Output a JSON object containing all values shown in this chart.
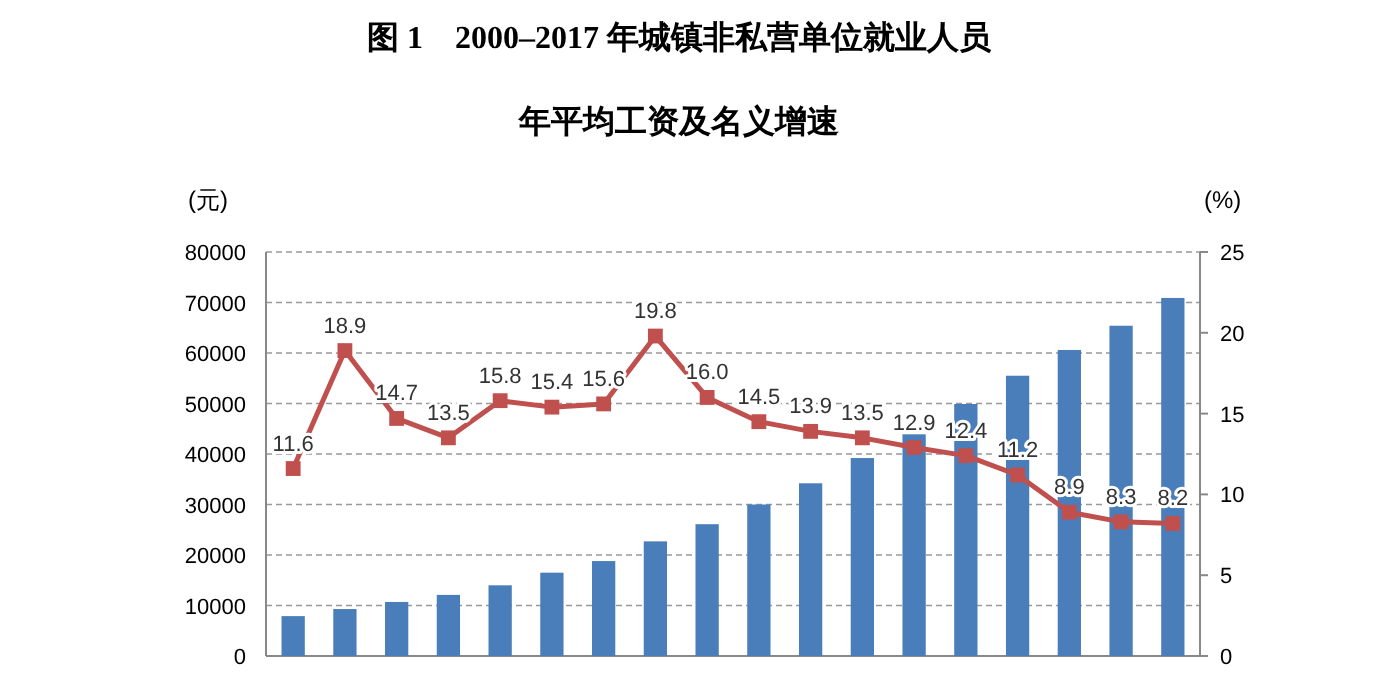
{
  "chart_data": {
    "type": "bar",
    "title": "图 1　2000–2017 年城镇非私营单位就业人员",
    "subtitle": "年平均工资及名义增速",
    "ylabel": "(元)",
    "y2label": "(%)",
    "categories": [
      null,
      null,
      null,
      null,
      null,
      null,
      null,
      null,
      null,
      null,
      null,
      null,
      null,
      null,
      null,
      null,
      null,
      null
    ],
    "series": [
      {
        "color": "#4a7ebb",
        "values": [
          7900,
          9300,
          10700,
          12100,
          14000,
          16500,
          18800,
          22700,
          26100,
          30000,
          34200,
          39200,
          43900,
          49900,
          55500,
          60600,
          65400,
          70900
        ]
      },
      {
        "type": "line",
        "axis": "y2",
        "color": "#c0504d",
        "marker": "square",
        "values": [
          11.6,
          18.9,
          14.7,
          13.5,
          15.8,
          15.4,
          15.6,
          19.8,
          16.0,
          14.5,
          13.9,
          13.5,
          12.9,
          12.4,
          11.2,
          8.9,
          8.3,
          8.2
        ],
        "value_labels": [
          "11.6",
          "18.9",
          "14.7",
          "13.5",
          "15.8",
          "15.4",
          "15.6",
          "19.8",
          "16.0",
          "14.5",
          "13.9",
          "13.5",
          "12.9",
          "12.4",
          "11.2",
          "8.9",
          "8.3",
          "8.2"
        ]
      }
    ],
    "ylim": [
      0,
      80000
    ],
    "yticks": [
      0,
      10000,
      20000,
      30000,
      40000,
      50000,
      60000,
      70000,
      80000
    ],
    "y2lim": [
      0,
      25
    ],
    "y2ticks": [
      0,
      5,
      10,
      15,
      20,
      25
    ],
    "grid": "y"
  }
}
